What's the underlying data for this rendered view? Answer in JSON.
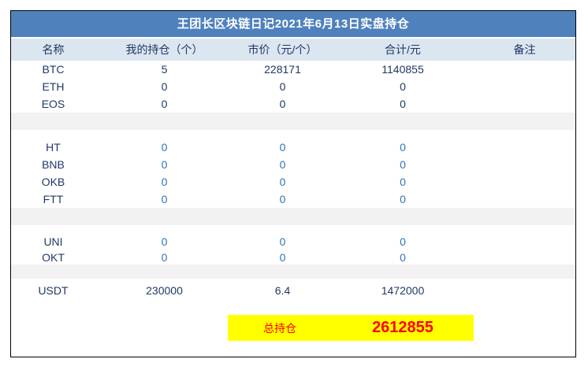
{
  "window": {
    "title": "王团长区块链日记2021年6月13日实盘持仓"
  },
  "table": {
    "columns": [
      {
        "id": "name",
        "label": "名称"
      },
      {
        "id": "holding",
        "label": "我的持仓（个）"
      },
      {
        "id": "price",
        "label": "市价（元/个）"
      },
      {
        "id": "total",
        "label": "合计/元"
      },
      {
        "id": "note",
        "label": "备注"
      }
    ],
    "rows": [
      {
        "type": "data",
        "tone": "dark",
        "name": "BTC",
        "holding": "5",
        "price": "228171",
        "total": "1140855",
        "note": ""
      },
      {
        "type": "data",
        "tone": "dark",
        "name": "ETH",
        "holding": "0",
        "price": "0",
        "total": "0",
        "note": ""
      },
      {
        "type": "data",
        "tone": "dark",
        "name": "EOS",
        "holding": "0",
        "price": "0",
        "total": "0",
        "note": ""
      },
      {
        "type": "separator-grey"
      },
      {
        "type": "separator-white"
      },
      {
        "type": "data",
        "tone": "blue",
        "name": "HT",
        "holding": "0",
        "price": "0",
        "total": "0",
        "note": ""
      },
      {
        "type": "data",
        "tone": "blue",
        "name": "BNB",
        "holding": "0",
        "price": "0",
        "total": "0",
        "note": ""
      },
      {
        "type": "data",
        "tone": "blue",
        "name": "OKB",
        "holding": "0",
        "price": "0",
        "total": "0",
        "note": ""
      },
      {
        "type": "data",
        "tone": "blue",
        "name": "FTT",
        "holding": "0",
        "price": "0",
        "total": "0",
        "note": ""
      },
      {
        "type": "separator-grey"
      },
      {
        "type": "separator-white"
      },
      {
        "type": "data",
        "tone": "blue",
        "name": "UNI",
        "holding": "0",
        "price": "0",
        "total": "0",
        "note": ""
      },
      {
        "type": "data",
        "tone": "blue",
        "name": "OKT",
        "holding": "0",
        "price": "0",
        "total": "0",
        "note": ""
      },
      {
        "type": "separator-grey"
      },
      {
        "type": "separator-white"
      },
      {
        "type": "data",
        "tone": "dark",
        "name": "USDT",
        "holding": "230000",
        "price": "6.4",
        "total": "1472000",
        "note": ""
      }
    ],
    "total_row": {
      "label": "总持仓",
      "value": "2612855"
    }
  },
  "colors": {
    "title_bg": "#4F81BD",
    "header_bg": "#DCE6F1",
    "text_dark": "#1F3864",
    "text_blue": "#2E74B5",
    "separator_grey": "#F2F2F2",
    "highlight_bg": "#FFFF00",
    "highlight_text": "#FF0000"
  }
}
